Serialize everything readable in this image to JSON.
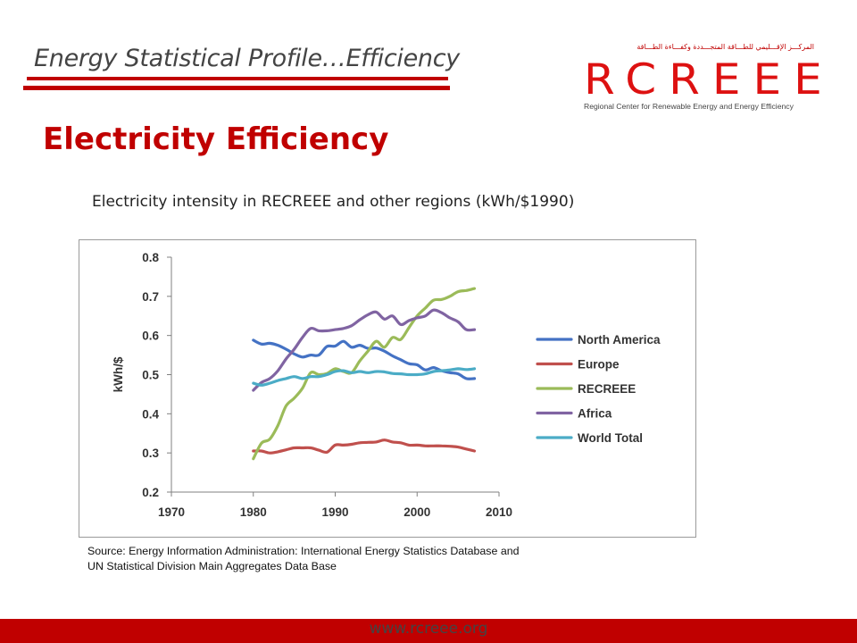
{
  "header": {
    "title": "Energy Statistical Profile…Efficiency"
  },
  "logo": {
    "wordmark": "RCREEE",
    "arabic": "المركـــز الإقـــليمي للطـــاقة المتجـــددة وكفـــاءة الطـــاقة",
    "subtitle": "Regional Center for Renewable Energy and Energy Efficiency"
  },
  "slide_title": "Electricity Efficiency",
  "chart_title": "Electricity intensity in RECREEE and other regions (kWh/$1990)",
  "source": {
    "line1": "Source: Energy Information Administration: International Energy Statistics Database and",
    "line2": "UN Statistical Division Main Aggregates Data Base"
  },
  "footer": {
    "url": "www.rcreee.org"
  },
  "chart_data": {
    "type": "line",
    "title": "",
    "xlabel": "",
    "ylabel": "kWh/$",
    "xlim": [
      1970,
      2010
    ],
    "ylim": [
      0.2,
      0.8
    ],
    "xticks": [
      "1970",
      "1980",
      "1990",
      "2000",
      "2010"
    ],
    "yticks": [
      "0.2",
      "0.3",
      "0.4",
      "0.5",
      "0.6",
      "0.7",
      "0.8"
    ],
    "legend_position": "right",
    "grid": false,
    "x": [
      1980,
      1981,
      1982,
      1983,
      1984,
      1985,
      1986,
      1987,
      1988,
      1989,
      1990,
      1991,
      1992,
      1993,
      1994,
      1995,
      1996,
      1997,
      1998,
      1999,
      2000,
      2001,
      2002,
      2003,
      2004,
      2005,
      2006,
      2007
    ],
    "series": [
      {
        "name": "North America",
        "color": "#4472c4",
        "values": [
          0.588,
          0.578,
          0.58,
          0.575,
          0.565,
          0.553,
          0.545,
          0.55,
          0.55,
          0.572,
          0.573,
          0.585,
          0.57,
          0.575,
          0.567,
          0.568,
          0.56,
          0.548,
          0.538,
          0.528,
          0.525,
          0.512,
          0.518,
          0.51,
          0.505,
          0.502,
          0.49,
          0.49
        ]
      },
      {
        "name": "Europe",
        "color": "#c0504d",
        "values": [
          0.305,
          0.305,
          0.3,
          0.303,
          0.308,
          0.313,
          0.313,
          0.313,
          0.307,
          0.302,
          0.32,
          0.32,
          0.322,
          0.326,
          0.327,
          0.328,
          0.333,
          0.328,
          0.326,
          0.32,
          0.32,
          0.318,
          0.318,
          0.318,
          0.317,
          0.315,
          0.31,
          0.305
        ]
      },
      {
        "name": "RECREEE",
        "color": "#9bbb59",
        "values": [
          0.285,
          0.325,
          0.335,
          0.37,
          0.42,
          0.44,
          0.465,
          0.505,
          0.5,
          0.503,
          0.515,
          0.508,
          0.505,
          0.535,
          0.56,
          0.585,
          0.57,
          0.595,
          0.59,
          0.62,
          0.65,
          0.67,
          0.69,
          0.692,
          0.7,
          0.712,
          0.715,
          0.72
        ]
      },
      {
        "name": "Africa",
        "color": "#8064a2",
        "values": [
          0.46,
          0.48,
          0.49,
          0.51,
          0.54,
          0.565,
          0.595,
          0.618,
          0.612,
          0.612,
          0.615,
          0.618,
          0.625,
          0.64,
          0.653,
          0.66,
          0.642,
          0.65,
          0.628,
          0.638,
          0.645,
          0.65,
          0.665,
          0.658,
          0.645,
          0.635,
          0.615,
          0.615
        ]
      },
      {
        "name": "World Total",
        "color": "#4bacc6",
        "values": [
          0.478,
          0.473,
          0.478,
          0.485,
          0.49,
          0.495,
          0.49,
          0.495,
          0.495,
          0.5,
          0.508,
          0.51,
          0.505,
          0.508,
          0.505,
          0.508,
          0.507,
          0.503,
          0.502,
          0.5,
          0.5,
          0.502,
          0.508,
          0.51,
          0.512,
          0.515,
          0.513,
          0.515
        ]
      }
    ]
  }
}
